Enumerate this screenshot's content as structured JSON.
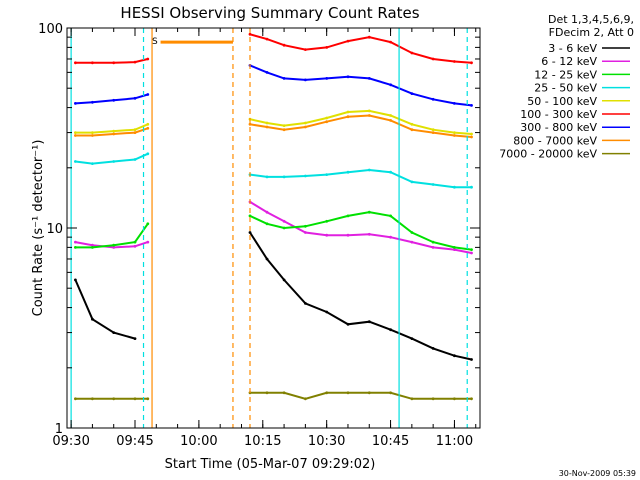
{
  "chart_data": {
    "type": "line",
    "title": "HESSI Observing Summary Count Rates",
    "xlabel": "Start Time (05-Mar-07 09:29:02)",
    "ylabel": "Count Rate (s⁻¹ detector⁻¹)",
    "yscale": "log",
    "ylim": [
      1,
      100
    ],
    "xlim": [
      "09:29:02",
      "11:06:00"
    ],
    "x_ticks": [
      "09:30",
      "09:45",
      "10:00",
      "10:15",
      "10:30",
      "10:45",
      "11:00"
    ],
    "y_ticks": [
      "1",
      "10",
      "100"
    ],
    "legend_header": [
      "Det 1,3,4,5,6,9,",
      "FDecim 2, Att 0"
    ],
    "legend_position": "right",
    "footer_date": "30-Nov-2009 05:39",
    "flag_marker": "S",
    "background": "#ffffff",
    "series": [
      {
        "name": "3 - 6 keV",
        "color": "#000000",
        "x": [
          "09:31",
          "09:35",
          "09:40",
          "09:45",
          "10:12",
          "10:16",
          "10:20",
          "10:25",
          "10:30",
          "10:35",
          "10:40",
          "10:45",
          "10:50",
          "10:55",
          "11:00",
          "11:04"
        ],
        "y": [
          5.5,
          3.5,
          3.0,
          2.8,
          9.5,
          7.0,
          5.5,
          4.2,
          3.8,
          3.3,
          3.4,
          3.1,
          2.8,
          2.5,
          2.3,
          2.2
        ]
      },
      {
        "name": "6 - 12 keV",
        "color": "#e020e0",
        "x": [
          "09:31",
          "09:35",
          "09:40",
          "09:45",
          "09:48",
          "10:12",
          "10:16",
          "10:20",
          "10:25",
          "10:30",
          "10:35",
          "10:40",
          "10:45",
          "10:50",
          "10:55",
          "11:00",
          "11:04"
        ],
        "y": [
          8.5,
          8.2,
          8.0,
          8.1,
          8.5,
          13.5,
          12.0,
          10.8,
          9.5,
          9.2,
          9.2,
          9.3,
          9.0,
          8.5,
          8.0,
          7.8,
          7.5
        ]
      },
      {
        "name": "12 - 25 keV",
        "color": "#00e000",
        "x": [
          "09:31",
          "09:35",
          "09:40",
          "09:45",
          "09:48",
          "10:12",
          "10:16",
          "10:20",
          "10:25",
          "10:30",
          "10:35",
          "10:40",
          "10:45",
          "10:50",
          "10:55",
          "11:00",
          "11:04"
        ],
        "y": [
          8.0,
          8.0,
          8.2,
          8.5,
          10.5,
          11.5,
          10.5,
          10.0,
          10.2,
          10.8,
          11.5,
          12.0,
          11.5,
          9.5,
          8.5,
          8.0,
          7.8
        ]
      },
      {
        "name": "25 - 50 keV",
        "color": "#00e0e0",
        "x": [
          "09:31",
          "09:35",
          "09:40",
          "09:45",
          "09:48",
          "10:12",
          "10:16",
          "10:20",
          "10:25",
          "10:30",
          "10:35",
          "10:40",
          "10:45",
          "10:50",
          "10:55",
          "11:00",
          "11:04"
        ],
        "y": [
          21.5,
          21.0,
          21.5,
          22.0,
          23.5,
          18.5,
          18.0,
          18.0,
          18.2,
          18.5,
          19.0,
          19.5,
          19.0,
          17.0,
          16.5,
          16.0,
          16.0
        ]
      },
      {
        "name": "50 - 100 keV",
        "color": "#e0e000",
        "x": [
          "09:31",
          "09:35",
          "09:40",
          "09:45",
          "09:48",
          "10:12",
          "10:16",
          "10:20",
          "10:25",
          "10:30",
          "10:35",
          "10:40",
          "10:45",
          "10:50",
          "10:55",
          "11:00",
          "11:04"
        ],
        "y": [
          30.0,
          30.0,
          30.5,
          31.0,
          33.0,
          35.0,
          33.5,
          32.5,
          33.5,
          35.5,
          38.0,
          38.5,
          36.5,
          33.0,
          31.0,
          30.0,
          29.5
        ]
      },
      {
        "name": "100 - 300 keV",
        "color": "#ff0000",
        "x": [
          "09:31",
          "09:35",
          "09:40",
          "09:45",
          "09:48",
          "10:12",
          "10:16",
          "10:20",
          "10:25",
          "10:30",
          "10:35",
          "10:40",
          "10:45",
          "10:50",
          "10:55",
          "11:00",
          "11:04"
        ],
        "y": [
          67.0,
          67.0,
          67.0,
          67.5,
          70.0,
          93.0,
          88.0,
          82.0,
          78.0,
          80.0,
          86.0,
          90.0,
          85.0,
          75.0,
          70.0,
          68.0,
          67.0
        ]
      },
      {
        "name": "300 - 800 keV",
        "color": "#0000ff",
        "x": [
          "09:31",
          "09:35",
          "09:40",
          "09:45",
          "09:48",
          "10:12",
          "10:16",
          "10:20",
          "10:25",
          "10:30",
          "10:35",
          "10:40",
          "10:45",
          "10:50",
          "10:55",
          "11:00",
          "11:04"
        ],
        "y": [
          42.0,
          42.5,
          43.5,
          44.5,
          46.5,
          65.0,
          60.0,
          56.0,
          55.0,
          56.0,
          57.0,
          56.0,
          52.0,
          47.0,
          44.0,
          42.0,
          41.0
        ]
      },
      {
        "name": "800 - 7000 keV",
        "color": "#ff8c00",
        "x": [
          "09:31",
          "09:35",
          "09:40",
          "09:45",
          "09:48",
          "10:12",
          "10:16",
          "10:20",
          "10:25",
          "10:30",
          "10:35",
          "10:40",
          "10:45",
          "10:50",
          "10:55",
          "11:00",
          "11:04"
        ],
        "y": [
          29.0,
          29.0,
          29.5,
          30.0,
          31.5,
          33.0,
          32.0,
          31.0,
          32.0,
          34.0,
          36.0,
          36.5,
          34.5,
          31.0,
          30.0,
          29.0,
          28.5
        ]
      },
      {
        "name": "7000 - 20000 keV",
        "color": "#808000",
        "x": [
          "09:31",
          "09:35",
          "09:40",
          "09:45",
          "09:48",
          "10:12",
          "10:16",
          "10:20",
          "10:25",
          "10:30",
          "10:35",
          "10:40",
          "10:45",
          "10:50",
          "10:55",
          "11:00",
          "11:04"
        ],
        "y": [
          1.4,
          1.4,
          1.4,
          1.4,
          1.4,
          1.5,
          1.5,
          1.5,
          1.4,
          1.5,
          1.5,
          1.5,
          1.5,
          1.4,
          1.4,
          1.4,
          1.4
        ]
      }
    ],
    "saturated_segment": {
      "color": "#ff8c00",
      "x_start": "09:51",
      "x_end": "10:08",
      "y": 85
    },
    "vertical_markers": [
      {
        "x": "09:30",
        "color": "#00e0e0",
        "style": "solid"
      },
      {
        "x": "09:47",
        "color": "#00e0e0",
        "style": "dashed"
      },
      {
        "x": "09:49",
        "color": "#ff8c00",
        "style": "solid"
      },
      {
        "x": "10:08",
        "color": "#ff8c00",
        "style": "dashed"
      },
      {
        "x": "10:12",
        "color": "#ff8c00",
        "style": "dashed"
      },
      {
        "x": "10:47",
        "color": "#00e0e0",
        "style": "solid"
      },
      {
        "x": "11:03",
        "color": "#00e0e0",
        "style": "dashed"
      }
    ]
  }
}
